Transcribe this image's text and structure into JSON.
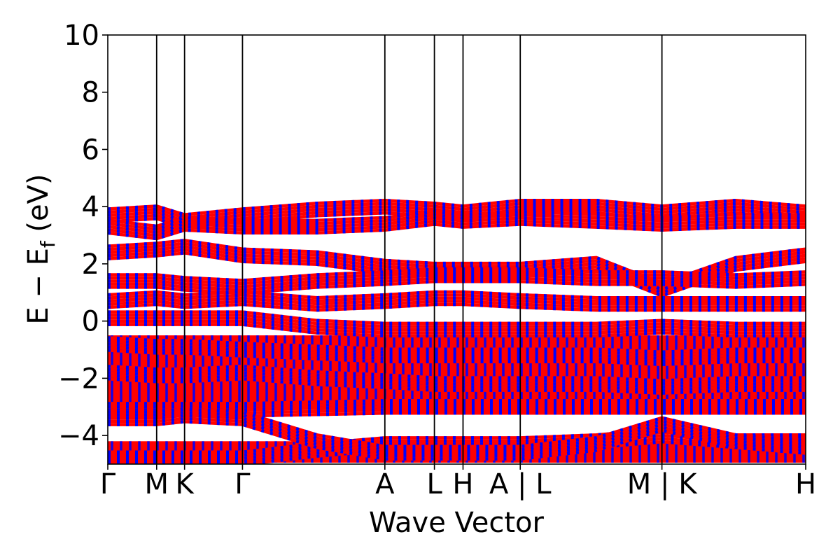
{
  "chart_data": {
    "type": "line",
    "title": "",
    "xlabel": "Wave Vector",
    "ylabel": "E − E_f (eV)",
    "ylabel_parts": {
      "main": "E − E",
      "sub": "f",
      "unit": " (eV)"
    },
    "ylim": [
      -5,
      10
    ],
    "yticks": [
      -4,
      -2,
      0,
      2,
      4,
      6,
      8,
      10
    ],
    "ytick_labels": [
      "−4",
      "−2",
      "0",
      "2",
      "4",
      "6",
      "8",
      "10"
    ],
    "grid": false,
    "legend": "none",
    "kpath_ticks": [
      {
        "label": "Γ",
        "x": 0.0
      },
      {
        "label": "M",
        "x": 0.07
      },
      {
        "label": "K",
        "x": 0.11
      },
      {
        "label": "Γ",
        "x": 0.193
      },
      {
        "label": "A",
        "x": 0.397
      },
      {
        "label": "L",
        "x": 0.468
      },
      {
        "label": "H",
        "x": 0.509
      },
      {
        "label": "A | L",
        "x": 0.591
      },
      {
        "label": "M | K",
        "x": 0.794
      },
      {
        "label": "H",
        "x": 1.0
      }
    ],
    "series": [
      {
        "color": "#ff0000"
      },
      {
        "color": "#0000ff"
      }
    ],
    "band_groups": [
      {
        "x": [
          0.0,
          0.07,
          0.11,
          0.193,
          0.3,
          0.397,
          0.468,
          0.509,
          0.591,
          0.7,
          0.794,
          0.9,
          1.0
        ],
        "y": [
          -3.1,
          -3.1,
          -3.1,
          -3.1,
          -3.05,
          -3.0,
          -3.0,
          -3.0,
          -3.0,
          -3.0,
          -3.0,
          -3.0,
          -3.0
        ]
      },
      {
        "x": [
          0.0,
          0.07,
          0.11,
          0.193,
          0.3,
          0.397,
          0.468,
          0.509,
          0.591,
          0.7,
          0.794,
          0.9,
          1.0
        ],
        "y": [
          -4.8,
          -4.8,
          -4.8,
          -4.8,
          -4.5,
          -4.3,
          -4.3,
          -4.3,
          -4.3,
          -4.2,
          -4.0,
          -4.2,
          -4.2
        ]
      },
      {
        "x": [
          0.0,
          0.07,
          0.11,
          0.193,
          0.3,
          0.397,
          0.468,
          0.509,
          0.591,
          0.7,
          0.794,
          0.9,
          1.0
        ],
        "y": [
          -3.4,
          -3.4,
          -3.3,
          -3.4,
          -4.2,
          -4.6,
          -4.6,
          -4.6,
          -4.6,
          -4.3,
          -3.6,
          -4.2,
          -4.4
        ]
      },
      {
        "x": [
          0.0,
          0.07,
          0.11,
          0.193,
          0.3,
          0.397,
          0.468,
          0.509,
          0.591,
          0.7,
          0.794,
          0.9,
          1.0
        ],
        "y": [
          3.7,
          3.8,
          3.5,
          3.7,
          3.9,
          4.0,
          3.9,
          3.8,
          4.0,
          4.0,
          3.8,
          4.0,
          3.8
        ]
      },
      {
        "x": [
          0.0,
          0.07,
          0.11,
          0.193,
          0.3,
          0.397,
          0.468,
          0.509,
          0.591,
          0.7,
          0.794,
          0.9,
          1.0
        ],
        "y": [
          3.3,
          3.1,
          3.4,
          3.3,
          3.3,
          3.4,
          3.6,
          3.5,
          3.6,
          3.5,
          3.4,
          3.5,
          3.5
        ]
      },
      {
        "x": [
          0.0,
          0.07,
          0.11,
          0.193,
          0.3,
          0.397,
          0.468,
          0.509,
          0.591,
          0.7,
          0.794,
          0.9,
          1.0
        ],
        "y": [
          2.4,
          2.5,
          2.6,
          2.3,
          2.2,
          1.9,
          1.8,
          1.8,
          1.8,
          2.0,
          1.1,
          2.0,
          2.3
        ]
      },
      {
        "x": [
          0.0,
          0.07,
          0.11,
          0.193,
          0.3,
          0.397,
          0.468,
          0.509,
          0.591,
          0.7,
          0.794,
          0.9,
          1.0
        ],
        "y": [
          1.4,
          1.4,
          1.3,
          1.2,
          1.4,
          1.5,
          1.6,
          1.6,
          1.6,
          1.5,
          1.5,
          1.4,
          1.5
        ]
      },
      {
        "x": [
          0.0,
          0.07,
          0.11,
          0.193,
          0.3,
          0.397,
          0.468,
          0.509,
          0.591,
          0.7,
          0.794,
          0.9,
          1.0
        ],
        "y": [
          0.7,
          0.8,
          0.7,
          0.8,
          0.6,
          0.7,
          0.8,
          0.8,
          0.7,
          0.6,
          0.6,
          0.6,
          0.6
        ]
      },
      {
        "x": [
          0.0,
          0.07,
          0.11,
          0.193,
          0.3,
          0.397,
          0.468,
          0.509,
          0.591,
          0.7,
          0.794,
          0.9,
          1.0
        ],
        "y": [
          0.1,
          0.1,
          0.1,
          0.1,
          -0.2,
          -0.3,
          -0.3,
          -0.3,
          -0.3,
          -0.3,
          -0.2,
          -0.3,
          -0.3
        ]
      },
      {
        "x": [
          0.0,
          0.07,
          0.11,
          0.193,
          0.3,
          0.397,
          0.468,
          0.509,
          0.591,
          0.7,
          0.794,
          0.9,
          1.0
        ],
        "y": [
          -0.8,
          -0.9,
          -0.9,
          -1.0,
          -1.1,
          -1.2,
          -1.2,
          -1.2,
          -1.2,
          -1.2,
          -1.3,
          -1.2,
          -1.2
        ]
      },
      {
        "x": [
          0.0,
          0.07,
          0.11,
          0.193,
          0.3,
          0.397,
          0.468,
          0.509,
          0.591,
          0.7,
          0.794,
          0.9,
          1.0
        ],
        "y": [
          -1.8,
          -1.9,
          -1.9,
          -1.8,
          -2.0,
          -2.1,
          -2.2,
          -2.2,
          -2.2,
          -2.2,
          -2.3,
          -2.2,
          -2.2
        ]
      }
    ],
    "fill_regions": [
      {
        "ymin": -3.1,
        "ymax": -0.5
      },
      {
        "ymin": -4.95,
        "ymax": -4.2
      }
    ]
  }
}
